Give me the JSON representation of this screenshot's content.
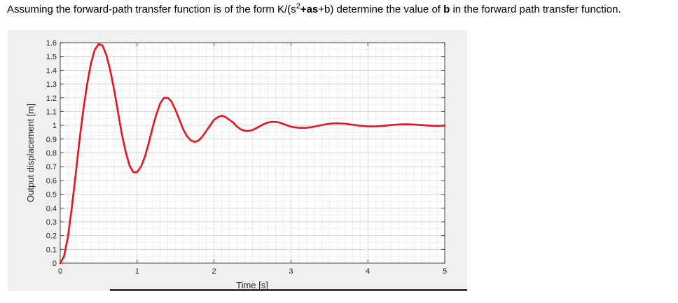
{
  "question": {
    "prefix": "Assuming the forward-path transfer function is of the form  K/(s",
    "exponent": "2",
    "term_as": "+as",
    "middle": "+b)  determine the value of ",
    "var_b": "b",
    "suffix": " in the forward path transfer function."
  },
  "chart_data": {
    "type": "line",
    "title": "",
    "xlabel": "Time [s]",
    "ylabel": "Output displacement [m]",
    "xlim": [
      0,
      5
    ],
    "ylim": [
      0,
      1.6
    ],
    "xticks": [
      "0",
      "1",
      "2",
      "3",
      "4",
      "5"
    ],
    "yticks": [
      "0",
      "0.1",
      "0.2",
      "0.3",
      "0.4",
      "0.5",
      "0.6",
      "0.7",
      "0.8",
      "0.9",
      "1",
      "1.1",
      "1.2",
      "1.3",
      "1.4",
      "1.5",
      "1.6"
    ],
    "grid": true,
    "line_color": "#e8141b",
    "series": [
      {
        "x": [
          0,
          0.05,
          0.1,
          0.15,
          0.2,
          0.25,
          0.3,
          0.35,
          0.4,
          0.45,
          0.5,
          0.55,
          0.6,
          0.65,
          0.7,
          0.75,
          0.8,
          0.85,
          0.9,
          0.95,
          1.0,
          1.05,
          1.1,
          1.15,
          1.2,
          1.25,
          1.3,
          1.35,
          1.4,
          1.45,
          1.5,
          1.55,
          1.6,
          1.65,
          1.7,
          1.75,
          1.8,
          1.85,
          1.9,
          1.95,
          2.0,
          2.05,
          2.1,
          2.15,
          2.2,
          2.25,
          2.3,
          2.35,
          2.4,
          2.45,
          2.5,
          2.55,
          2.6,
          2.65,
          2.7,
          2.75,
          2.8,
          2.85,
          2.9,
          2.95,
          3.0,
          3.1,
          3.2,
          3.3,
          3.4,
          3.5,
          3.6,
          3.7,
          3.8,
          3.9,
          4.0,
          4.1,
          4.2,
          4.3,
          4.4,
          4.5,
          4.6,
          4.7,
          4.8,
          4.9,
          5.0
        ],
        "y": [
          0,
          0.05,
          0.19,
          0.4,
          0.64,
          0.89,
          1.11,
          1.3,
          1.45,
          1.55,
          1.59,
          1.58,
          1.51,
          1.4,
          1.26,
          1.1,
          0.94,
          0.81,
          0.71,
          0.66,
          0.66,
          0.7,
          0.77,
          0.87,
          0.98,
          1.08,
          1.16,
          1.2,
          1.2,
          1.17,
          1.11,
          1.04,
          0.97,
          0.92,
          0.89,
          0.88,
          0.89,
          0.92,
          0.96,
          1.0,
          1.04,
          1.06,
          1.07,
          1.06,
          1.04,
          1.02,
          0.99,
          0.97,
          0.96,
          0.96,
          0.965,
          0.98,
          0.995,
          1.01,
          1.02,
          1.025,
          1.025,
          1.02,
          1.01,
          1.0,
          0.99,
          0.982,
          0.982,
          0.99,
          1.002,
          1.012,
          1.015,
          1.012,
          1.005,
          0.997,
          0.992,
          0.992,
          0.996,
          1.002,
          1.007,
          1.008,
          1.006,
          1.002,
          0.998,
          0.996,
          0.998
        ]
      }
    ]
  }
}
